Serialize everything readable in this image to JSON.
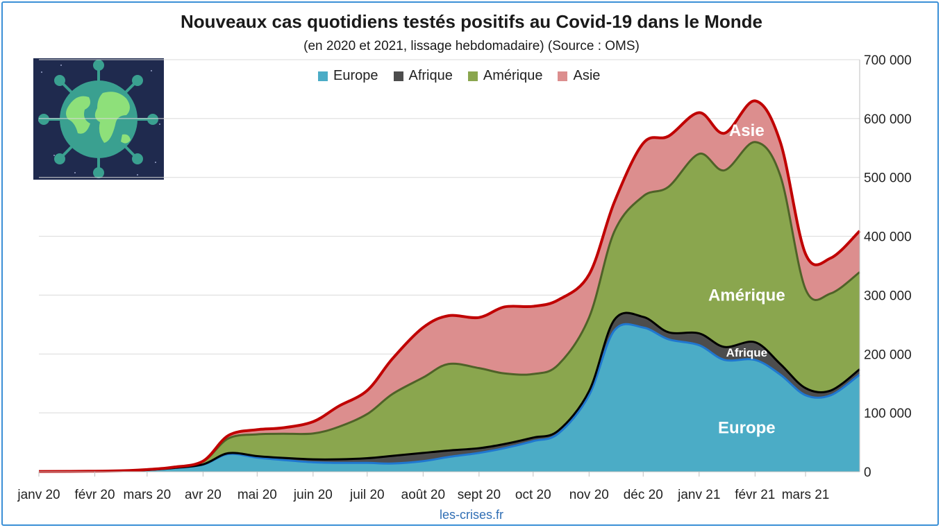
{
  "title": "Nouveaux cas quotidiens testés positifs au Covid-19 dans le Monde",
  "subtitle": "(en 2020 et 2021, lissage hebdomadaire) (Source : OMS)",
  "source": "les-crises.fr",
  "colors": {
    "europe": "#4bacc6",
    "afrique": "#4d4d4d",
    "amerique": "#8aa64e",
    "asie": "#dc8e8e",
    "total_line": "#c00000",
    "grid": "#d9d9d9",
    "frame": "#3a8fd6",
    "globe_bg": "#1f2a4e",
    "globe_ocean": "#3aa090",
    "globe_land": "#8ee07a"
  },
  "chart_data": {
    "type": "area",
    "title": "Nouveaux cas quotidiens testés positifs au Covid-19 dans le Monde",
    "subtitle": "(en 2020 et 2021, lissage hebdomadaire) (Source : OMS)",
    "x_ticks": [
      "janv 20",
      "févr 20",
      "mars 20",
      "avr 20",
      "mai 20",
      "juin 20",
      "juil 20",
      "août 20",
      "sept 20",
      "oct 20",
      "nov 20",
      "déc 20",
      "janv 21",
      "févr 21",
      "mars 21"
    ],
    "y_ticks": [
      "0",
      "100 000",
      "200 000",
      "300 000",
      "400 000",
      "500 000",
      "600 000",
      "700 000"
    ],
    "ylim": [
      0,
      700000
    ],
    "legend_position": "top",
    "grid": true,
    "x": [
      "2020-01-01",
      "2020-02-01",
      "2020-02-20",
      "2020-03-01",
      "2020-03-15",
      "2020-04-01",
      "2020-04-15",
      "2020-05-01",
      "2020-05-15",
      "2020-06-01",
      "2020-06-15",
      "2020-07-01",
      "2020-07-15",
      "2020-08-01",
      "2020-08-15",
      "2020-09-01",
      "2020-09-15",
      "2020-10-01",
      "2020-10-15",
      "2020-11-01",
      "2020-11-15",
      "2020-12-01",
      "2020-12-15",
      "2021-01-01",
      "2021-01-15",
      "2021-02-01",
      "2021-02-15",
      "2021-03-01",
      "2021-03-15",
      "2021-03-31"
    ],
    "series": [
      {
        "name": "Europe",
        "values": [
          500,
          800,
          2000,
          3000,
          6000,
          12000,
          30000,
          24000,
          20000,
          16000,
          15000,
          15000,
          14000,
          18000,
          25000,
          32000,
          40000,
          52000,
          65000,
          130000,
          240000,
          245000,
          225000,
          215000,
          190000,
          190000,
          165000,
          130000,
          130000,
          165000
        ]
      },
      {
        "name": "Afrique",
        "values": [
          0,
          0,
          0,
          0,
          200,
          500,
          1500,
          2500,
          3500,
          5000,
          6000,
          8000,
          13000,
          14000,
          11000,
          8000,
          7000,
          6000,
          5000,
          7000,
          18000,
          18000,
          12000,
          20000,
          22000,
          30000,
          18000,
          12000,
          8000,
          9000
        ]
      },
      {
        "name": "Amérique",
        "values": [
          0,
          0,
          0,
          500,
          1000,
          5000,
          25000,
          37000,
          41000,
          44000,
          55000,
          75000,
          105000,
          128000,
          147000,
          136000,
          120000,
          108000,
          112000,
          125000,
          150000,
          205000,
          247000,
          305000,
          300000,
          340000,
          320000,
          168000,
          165000,
          165000
        ]
      },
      {
        "name": "Asie",
        "values": [
          0,
          100,
          100,
          200,
          300,
          500,
          5000,
          8000,
          10000,
          20000,
          35000,
          40000,
          60000,
          85000,
          82000,
          86000,
          113000,
          115000,
          110000,
          73000,
          50000,
          90000,
          86000,
          70000,
          63000,
          70000,
          57000,
          60000,
          60000,
          70000
        ]
      }
    ],
    "totals": [
      500,
      900,
      2100,
      3700,
      7500,
      18000,
      61500,
      71500,
      74500,
      85000,
      111000,
      138000,
      192000,
      245000,
      265000,
      262000,
      280000,
      281000,
      292000,
      335000,
      458000,
      558000,
      570000,
      610000,
      575000,
      630000,
      560000,
      370000,
      363000,
      409000
    ],
    "annotations": [
      {
        "text": "Asie",
        "x": "2021-02-01",
        "y": 580000
      },
      {
        "text": "Amérique",
        "x": "2021-02-01",
        "y": 300000
      },
      {
        "text": "Afrique",
        "x": "2021-02-01",
        "y": 205000
      },
      {
        "text": "Europe",
        "x": "2021-02-01",
        "y": 75000
      }
    ]
  }
}
